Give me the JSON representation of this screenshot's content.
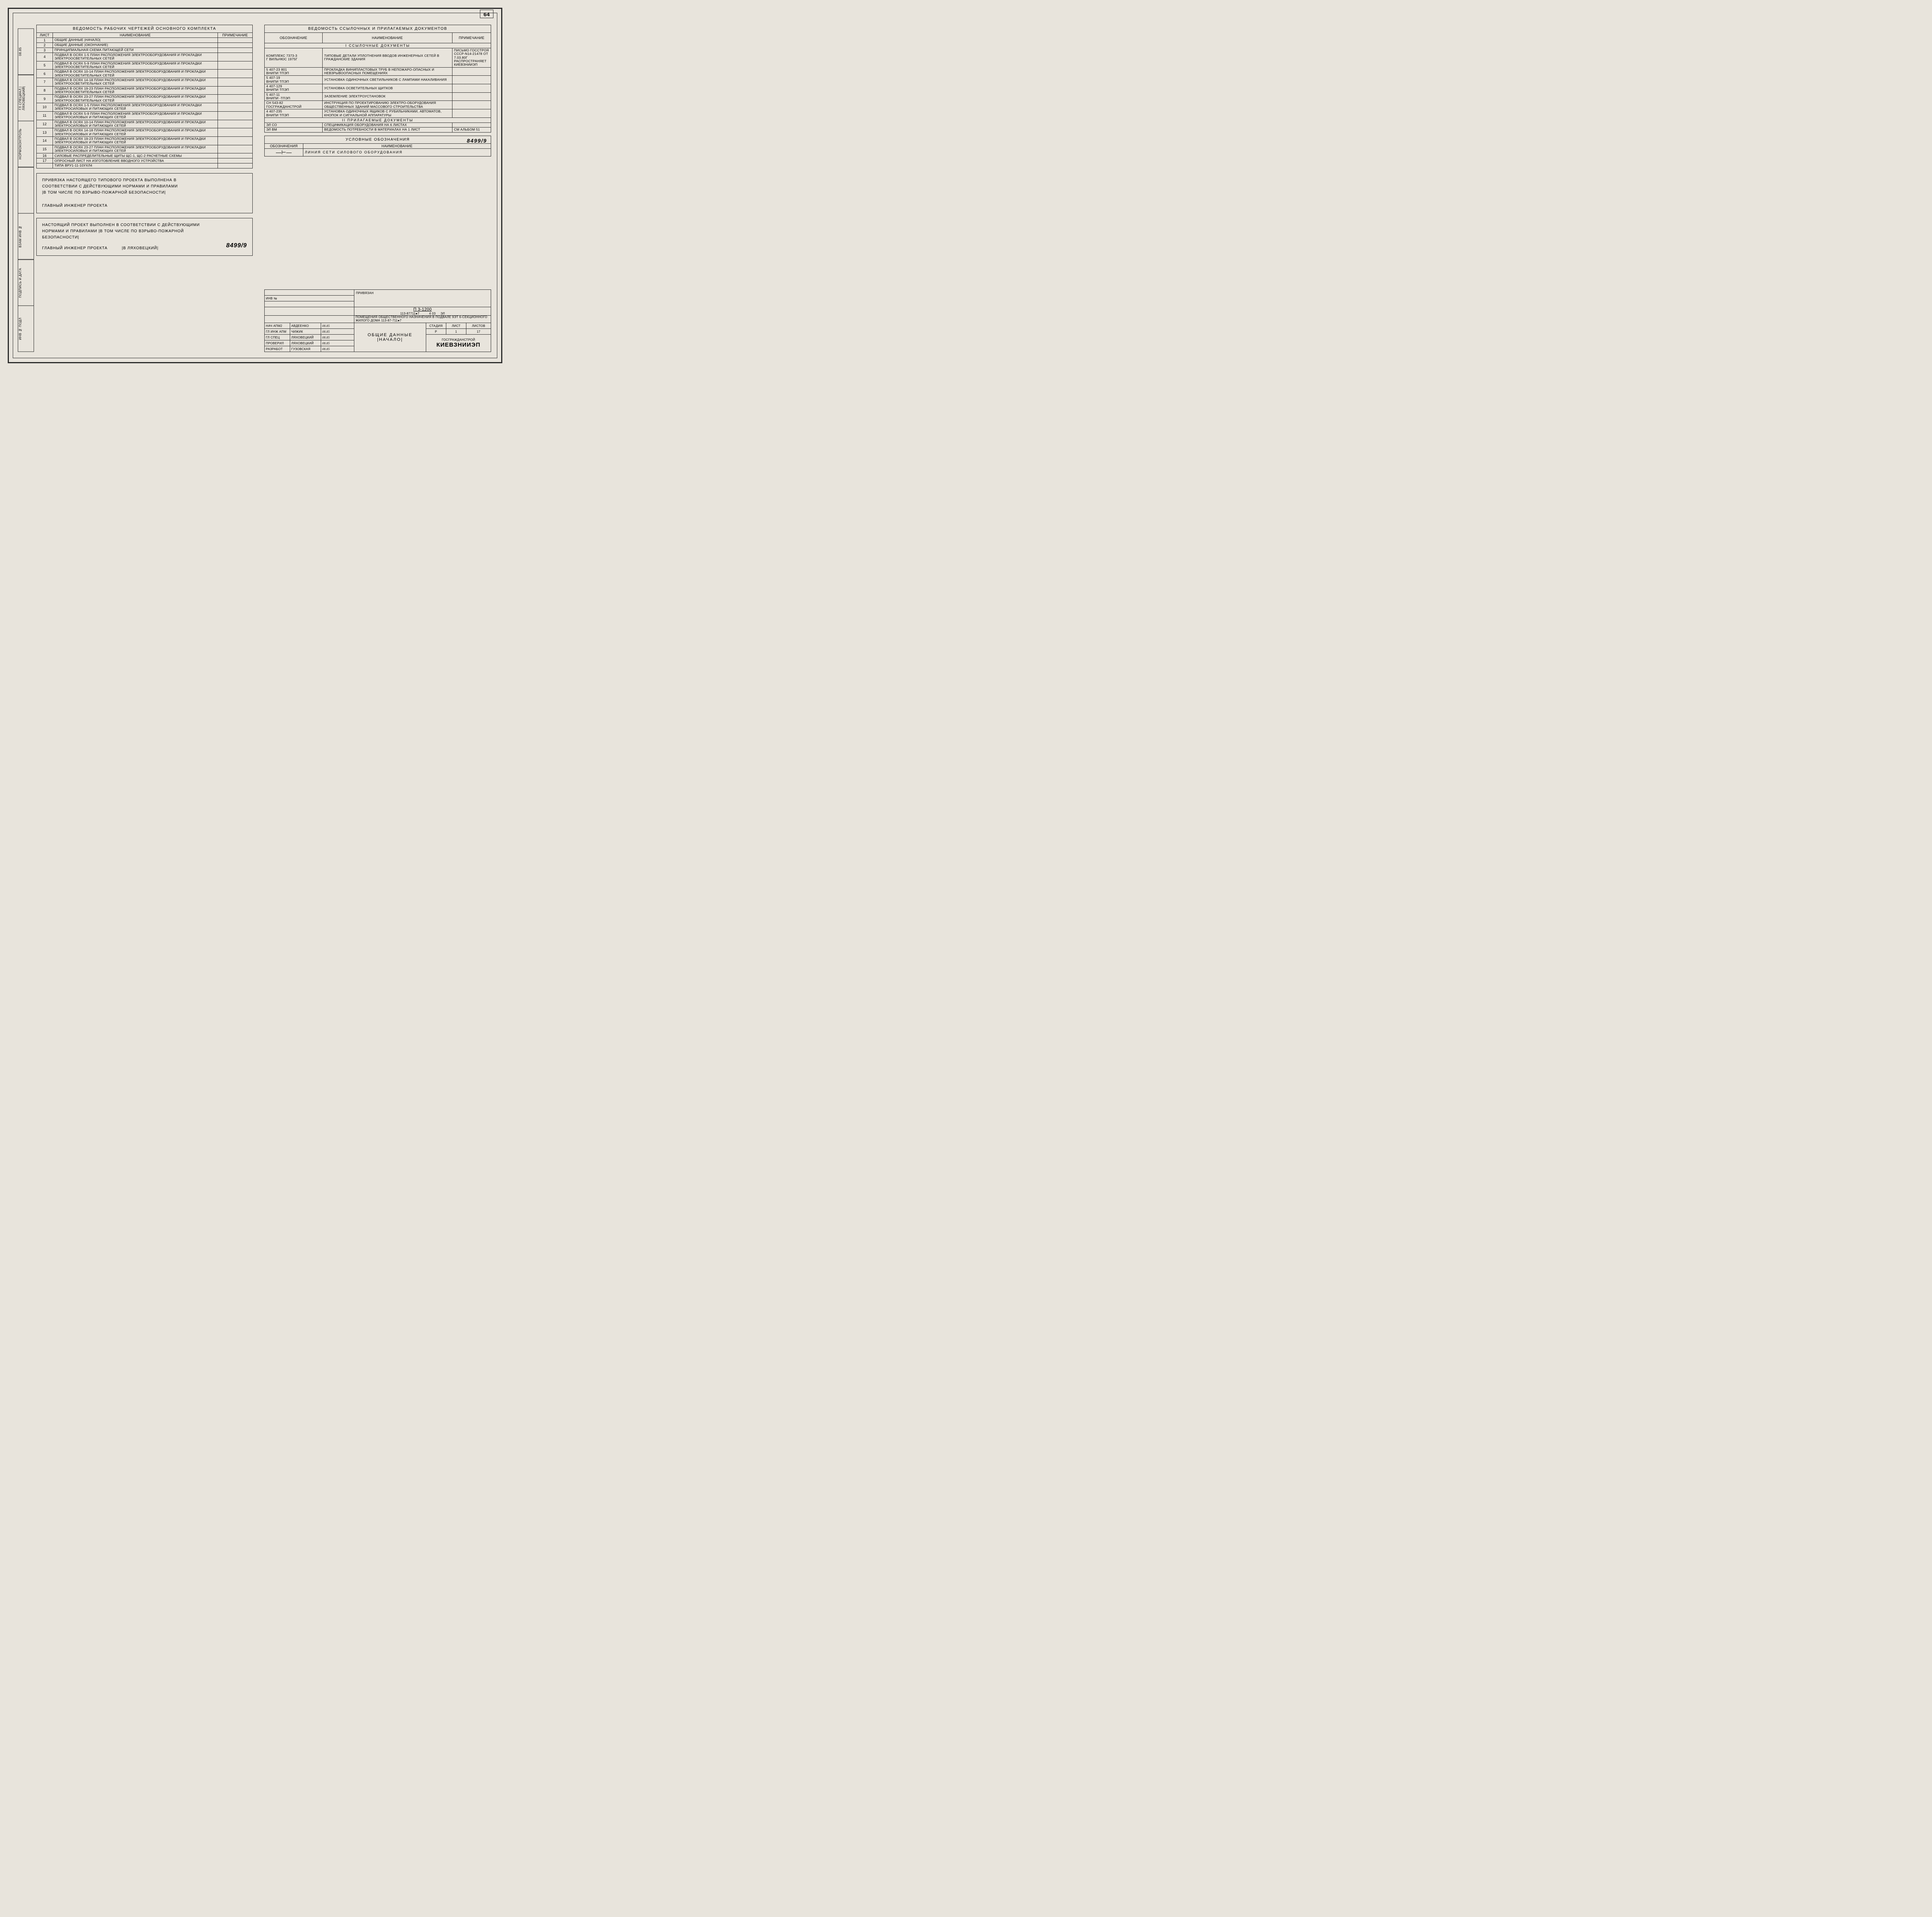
{
  "pageNumber": "64",
  "docNumber": "8499/9",
  "leftTable": {
    "title": "ВЕДОМОСТЬ РАБОЧИХ ЧЕРТЕЖЕЙ ОСНОВНОГО КОМПЛЕКТА",
    "cols": [
      "ЛИСТ",
      "НАИМЕНОВАНИЕ",
      "ПРИМЕЧАНИЕ"
    ],
    "rows": [
      [
        "1",
        "ОБЩИЕ   ДАННЫЕ   |НАЧАЛО|",
        ""
      ],
      [
        "2",
        "ОБЩИЕ   ДАННЫЕ  |ОКОНЧАНИЕ|",
        ""
      ],
      [
        "3",
        "ПРИНЦИПИАЛЬНАЯ СХЕМА ПИТАЮЩЕЙ СЕТИ",
        ""
      ],
      [
        "4",
        "ПОДВАЛ В ОСЯХ 1-5 ПЛАН РАСПОЛОЖЕНИЯ ЭЛЕКТРООБОРУДОВАНИЯ И ПРОКЛАДКИ ЭЛЕКТРООСВЕТИТЕЛЬНЫХ СЕТЕЙ",
        ""
      ],
      [
        "5",
        "ПОДВАЛ В ОСЯХ 5-9 ПЛАН РАСПОЛОЖЕНИЯ ЭЛЕКТРООБОРУДОВАНИЯ И ПРОКЛАДКИ ЭЛЕКТРООСВЕТИТЕЛЬНЫХ СЕТЕЙ",
        ""
      ],
      [
        "6",
        "ПОДВАЛ В ОСЯХ 10-14 ПЛАН РАСПОЛОЖЕНИЯ ЭЛЕКТРООБОРУДОВАНИЯ И ПРОКЛАДКИ ЭЛЕКТРООСВЕТИТЕЛЬНЫХ СЕТЕЙ",
        ""
      ],
      [
        "7",
        "ПОДВАЛ В ОСЯХ 14-18 ПЛАН РАСПОЛОЖЕНИЯ ЭЛЕКТРООБОРУДОВАНИЯ И ПРОКЛАДКИ ЭЛЕКТРООСВЕТИТЕЛЬНЫХ СЕТЕЙ",
        ""
      ],
      [
        "8",
        "ПОДВАЛ В ОСЯХ 19-23 ПЛАН РАСПОЛОЖЕНИЯ ЭЛЕКТРООБОРУДОВАНИЯ И ПРОКЛАДКИ ЭЛЕКТРООСВЕТИТЕЛЬНЫХ СЕТЕЙ",
        ""
      ],
      [
        "9",
        "ПОДВАЛ В ОСЯХ 23-27 ПЛАН РАСПОЛОЖЕНИЯ ЭЛЕКТРООБОРУДОВАНИЯ И ПРОКЛАДКИ ЭЛЕКТРООСВЕТИТЕЛЬНЫХ СЕТЕЙ",
        ""
      ],
      [
        "10",
        "ПОДВАЛ В ОСЯХ 1-5 ПЛАН РАСПОЛОЖЕНИЯ ЭЛЕКТРООБОРУДОВАНИЯ И ПРОКЛАДКИ ЭЛЕКТРОСИЛОВЫХ И ПИТАЮЩИХ СЕТЕЙ",
        ""
      ],
      [
        "11",
        "ПОДВАЛ В ОСЯХ 5-9 ПЛАН РАСПОЛОЖЕНИЯ ЭЛЕКТРООБОРУДОВАНИЯ И ПРОКЛАДКИ ЭЛЕКТРОСИЛОВЫХ И ПИТАЮЩИХ СЕТЕЙ",
        ""
      ],
      [
        "12",
        "ПОДВАЛ В ОСЯХ 10-14 ПЛАН РАСПОЛОЖЕНИЯ ЭЛЕКТРООБОРУДОВАНИЯ И ПРОКЛАДКИ ЭЛЕКТРОСИЛОВЫХ И ПИТАЮЩИХ СЕТЕЙ",
        ""
      ],
      [
        "13",
        "ПОДВАЛ В ОСЯХ 14-18 ПЛАН РАСПОЛОЖЕНИЯ ЭЛЕКТРООБОРУДОВАНИЯ И ПРОКЛАДКИ ЭЛЕКТРОСИЛОВЫХ И ПИТАЮЩИХ СЕТЕЙ",
        ""
      ],
      [
        "14",
        "ПОДВАЛ В ОСЯХ 19-23 ПЛАН РАСПОЛОЖЕНИЯ ЭЛЕКТРООБОРУДОВАНИЯ И ПРОКЛАДКИ ЭЛЕКТРОСИЛОВЫХ И ПИТАЮЩИХ СЕТЕЙ",
        ""
      ],
      [
        "15",
        "ПОДВАЛ В ОСЯХ 23-27 ПЛАН РАСПОЛОЖЕНИЯ ЭЛЕКТРООБОРУДОВАНИЯ И ПРОКЛАДКИ ЭЛЕКТРОСИЛОВЫХ И ПИТАЮЩИХ СЕТЕЙ",
        ""
      ],
      [
        "16",
        "СИЛОВЫЕ РАСПРЕДЕЛИТЕЛЬНЫЕ ЩИТЫ ЩС-1, ЩС-2 РАСЧЕТНЫЕ СХЕМЫ",
        ""
      ],
      [
        "17",
        "ОПРОСНЫЙ ЛИСТ НА ИЗГОТОВЛЕНИЕ ВВОДНОГО УСТРОЙСТВА",
        ""
      ],
      [
        "",
        "ТИПА ВРУ1-11-10УХЛ4",
        ""
      ]
    ]
  },
  "note1": {
    "l1": "ПРИВЯЗКА НАСТОЯЩЕГО ТИПОВОГО ПРОЕКТА ВЫПОЛНЕНА В",
    "l2": "СООТВЕТСТВИИ С ДЕЙСТВУЮЩИМИ НОРМАМИ И ПРАВИЛАМИ",
    "l3": "|В ТОМ ЧИСЛЕ ПО ВЗРЫВО-ПОЖАРНОЙ БЕЗОПАСНОСТИ|",
    "l4": "ГЛАВНЫЙ ИНЖЕНЕР ПРОЕКТА"
  },
  "note2": {
    "l1": "НАСТОЯЩИЙ ПРОЕКТ ВЫПОЛНЕН В СООТВЕТСТВИИ С ДЕЙСТВУЮЩИМИ",
    "l2": "НОРМАМИ И ПРАВИЛАМИ |В ТОМ ЧИСЛЕ ПО ВЗРЫВО-ПОЖАРНОЙ",
    "l3": "БЕЗОПАСНОСТИ|",
    "l4": "ГЛАВНЫЙ ИНЖЕНЕР ПРОЕКТА",
    "sig": "|В ЛЯХОВЕЦКИЙ|"
  },
  "rightTable": {
    "title": "ВЕДОМОСТЬ ССЫЛОЧНЫХ И ПРИЛАГАЕМЫХ ДОКУМЕНТОВ",
    "cols": [
      "ОБОЗНАЧЕНИЕ",
      "НАИМЕНОВАНИЕ",
      "ПРИМЕЧАНИЕ"
    ],
    "sec1": "I ССЫЛОЧНЫЕ ДОКУМЕНТЫ",
    "rows1": [
      [
        "КОМПЛЕКС 7373-3\nГ ВИЛЬНЮС 1975г",
        "ТИПОВЫЕ ДЕТАЛИ УПЛОТНЕНИЯ ВВОДОВ ИНЖЕНЕРНЫХ СЕТЕЙ В ГРАЖДАНСКИЕ ЗДАНИЯ",
        "ПИСЬМО ГОССТРОЯ СССР-N14-21478 ОТ 7.03.80Г РАСПРОСТРАНЯЕТ КИЕВЗНИИЭП"
      ],
      [
        "5 407-23 801\nВНИПИ ТПЭП",
        "ПРОКЛАДКА ВИНИПЛАСТОВЫХ ТРУБ В НЕПОЖАРО-ОПАСНЫХ И НЕВЗРЫВООПАСНЫХ ПОМЕЩЕНИЯХ",
        ""
      ],
      [
        "5 407-19\nВНИПИ ТПЭП",
        "УСТАНОВКА ОДИНОЧНЫХ СВЕТИЛЬНИКОВ С ЛАМПАМИ НАКАЛИВАНИЯ",
        ""
      ],
      [
        "4 407-129\nВНИПИ ТПЭП",
        "УСТАНОВКА ОСВЕТИТЕЛЬНЫХ ЩИТКОВ",
        ""
      ],
      [
        "5 407-11\nВНИПИ -ТПЭП",
        "ЗАЗЕМЛЕНИЕ ЭЛЕКТРОУСТАНОВОК",
        ""
      ],
      [
        "СН 543-82\nГОСГРАЖДАНСТРОЙ",
        "ИНСТРУКЦИЯ ПО ПРОЕКТИРОВАНИЮ ЭЛЕКТРО-ОБОРУДОВАНИЯ ОБЩЕСТВЕННЫХ ЗДАНИЙ МАССОВОГО СТРОИТЕЛЬСТВА",
        ""
      ],
      [
        "4 407-235\nВНИПИ ТПЭП",
        "УСТАНОВКА ОДИНОЧНЫХ ЯЩИКОВ С РУБИЛЬНИКАМИ, АВТОМАТОВ, КНОПОК И СИГНАЛЬНОЙ АППАРАТУРЫ",
        ""
      ]
    ],
    "sec2": "II ПРИЛАГАЕМЫЕ ДОКУМЕНТЫ",
    "rows2": [
      [
        "ЭЛ СО",
        "СПЕЦИФИКАЦИЯ ОБОРУДОВАНИЯ НА 6 ЛИСТАХ",
        ""
      ],
      [
        "ЭЛ ВМ",
        "ВЕДОМОСТЬ ПОТРЕБНОСТИ В МАТЕРИАЛАХ НА 1 ЛИСТ",
        "СМ АЛЬБОМ 51"
      ]
    ]
  },
  "legend": {
    "title": "УСЛОВНЫЕ ОБОЗНАЧЕНИЯ",
    "cols": [
      "ОБОЗНАЧЕНИЯ",
      "НАИМЕНОВАНИЕ"
    ],
    "row": "ЛИНИЯ СЕТИ СИЛОВОГО ОБОРУДОВАНИЯ"
  },
  "titleBlock": {
    "priv": "ПРИВЯЗАН",
    "inv": "ИНВ №",
    "code1": "П 3-1200",
    "code2": "113-87711●7",
    "code3": "4 03",
    "code4": "ЭЛ",
    "desc": "ПОМЕЩЕНИЯ ОБЩЕСТВЕННОГО НАЗНАЧЕНИЯ В ПОДВАЛЕ 9ЭТ 6-СЕКЦИОННОГО ЖИЛОГО ДОМА 113-87-711●7",
    "stadLbl": "СТАДИЯ",
    "listLbl": "ЛИСТ",
    "listovLbl": "ЛИСТОВ",
    "stad": "Р",
    "list": "1",
    "listov": "17",
    "roles": [
      [
        "НАЧ АПМ2",
        "АВДЕЕНКО",
        "08.85"
      ],
      [
        "ГЛ ИНЖ АПМ",
        "ЧИЖИК",
        "08.85"
      ],
      [
        "ГЛ СПЕЦ",
        "ЛЯХОВЕЦКИЙ",
        "08.85"
      ],
      [
        "ПРОВЕРИЛ",
        "ЛЯХОВЕЦКИЙ",
        "08.85"
      ],
      [
        "РАЗРАБОТ",
        "ГУЗОВСКАЯ",
        "08.85"
      ]
    ],
    "mainTitle1": "ОБЩИЕ ДАННЫЕ",
    "mainTitle2": "|НАЧАЛО|",
    "org1": "ГОСГРАЖДАНСТРОЙ",
    "org2": "КиевЗНИИЭП"
  },
  "sideStamps": [
    "ИНВ № ПОДЛ",
    "ПОДПИСЬ И ДАТА",
    "ВЗАМ ИНВ №",
    "",
    "НОРМОКОНТРОЛЬ",
    "ГЛ СПЕЦИАЛ |ЛЯХОВЕЦКИЙ|",
    "08.85"
  ],
  "colors": {
    "bg": "#e8e4dc",
    "line": "#2a2a2a"
  }
}
